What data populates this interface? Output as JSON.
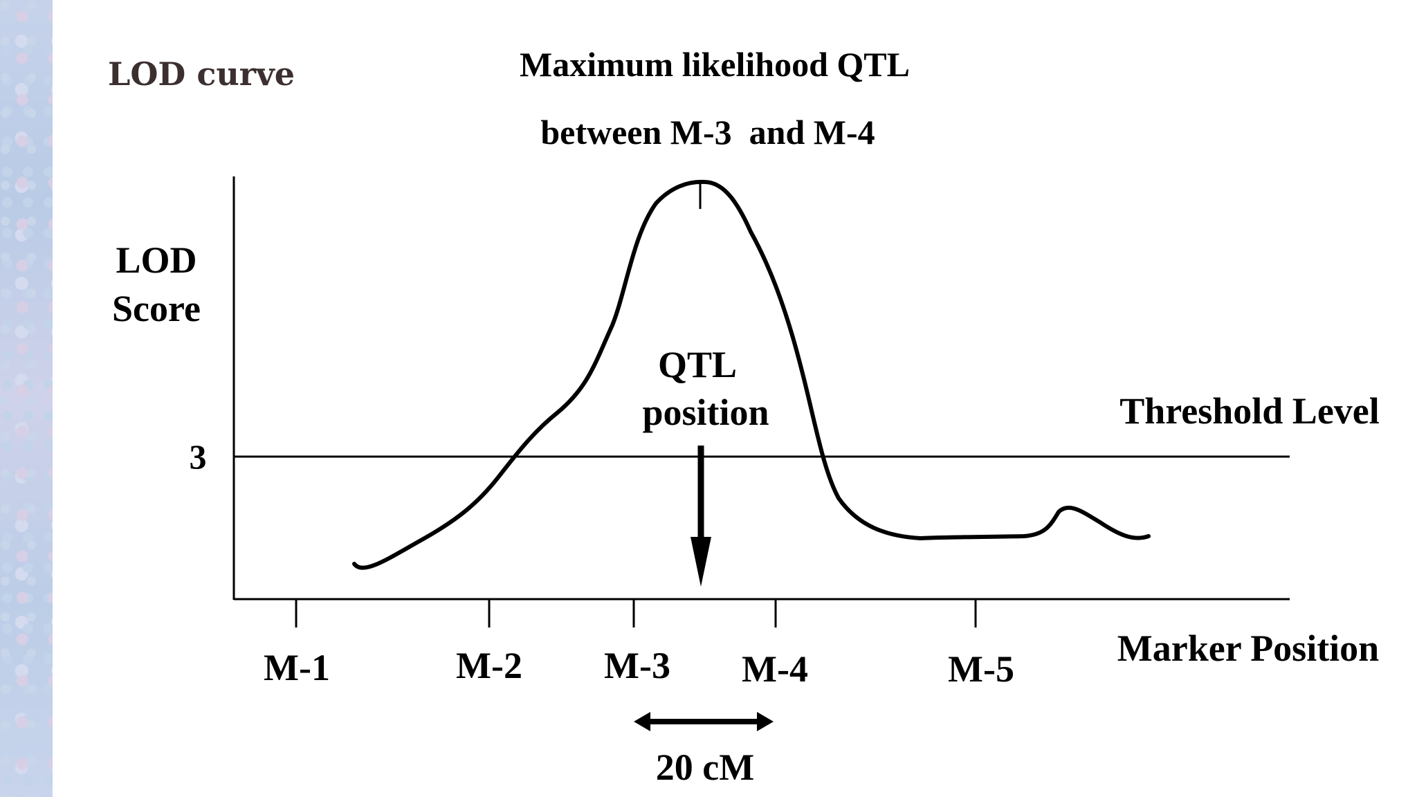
{
  "slide": {
    "title": "LOD curve"
  },
  "diagram": {
    "heading_line1": "Maximum likelihood QTL",
    "heading_line2": "between M-3  and M-4",
    "y_axis_label_line1": "LOD",
    "y_axis_label_line2": "Score",
    "threshold_value": "3",
    "threshold_label": "Threshold Level",
    "x_axis_label": "Marker Position",
    "qtl_label_line1": "QTL",
    "qtl_label_line2": "position",
    "markers": [
      "M-1",
      "M-2",
      "M-3",
      "M-4",
      "M-5"
    ],
    "scale_label": "20 cM"
  },
  "colors": {
    "ink": "#000000",
    "title": "#3b2f2f",
    "side_strip": "#c6d2ea"
  },
  "icons": {
    "qtl_arrow": "down-arrow-icon",
    "scale_arrow": "double-headed-arrow-icon"
  }
}
